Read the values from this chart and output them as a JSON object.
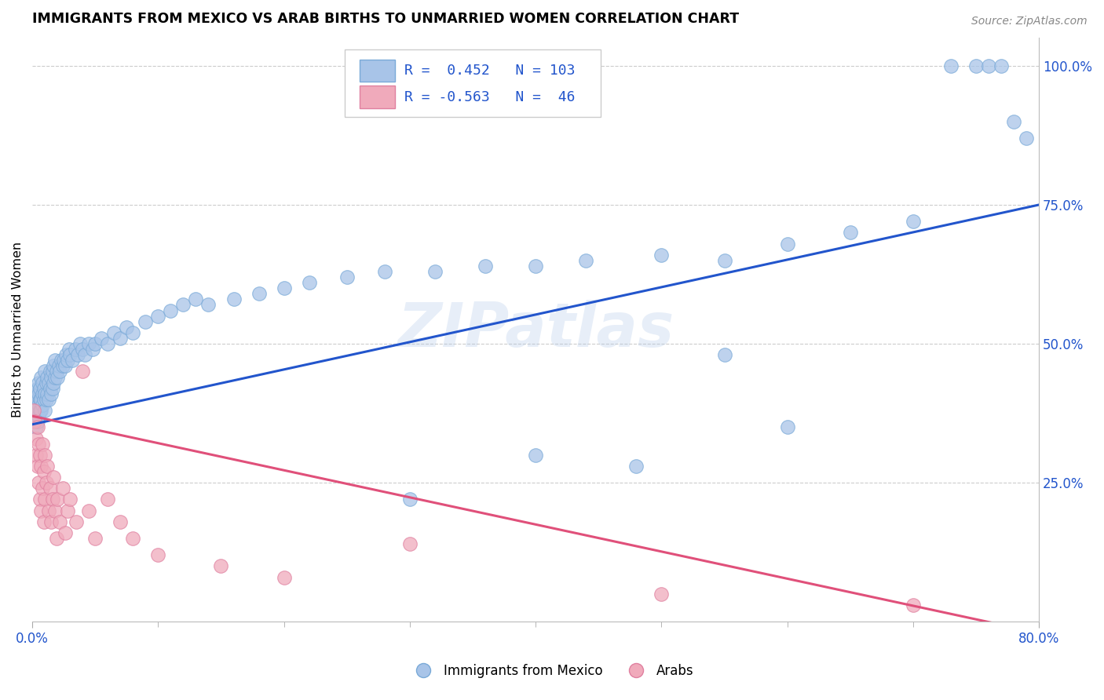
{
  "title": "IMMIGRANTS FROM MEXICO VS ARAB BIRTHS TO UNMARRIED WOMEN CORRELATION CHART",
  "source": "Source: ZipAtlas.com",
  "ylabel": "Births to Unmarried Women",
  "ylabel_right_ticks": [
    "25.0%",
    "50.0%",
    "75.0%",
    "100.0%"
  ],
  "ylabel_right_vals": [
    0.25,
    0.5,
    0.75,
    1.0
  ],
  "blue_R": 0.452,
  "blue_N": 103,
  "pink_R": -0.563,
  "pink_N": 46,
  "blue_color": "#a8c4e8",
  "pink_color": "#f0aabb",
  "blue_edge": "#7aaad8",
  "pink_edge": "#e080a0",
  "blue_line_color": "#2255cc",
  "pink_line_color": "#e0507a",
  "legend_blue_label": "Immigrants from Mexico",
  "legend_pink_label": "Arabs",
  "watermark": "ZIPatlas",
  "xlim": [
    0.0,
    0.8
  ],
  "ylim": [
    0.0,
    1.05
  ],
  "blue_scatter_x": [
    0.001,
    0.002,
    0.002,
    0.003,
    0.003,
    0.003,
    0.004,
    0.004,
    0.004,
    0.004,
    0.005,
    0.005,
    0.005,
    0.005,
    0.006,
    0.006,
    0.006,
    0.007,
    0.007,
    0.007,
    0.008,
    0.008,
    0.008,
    0.009,
    0.009,
    0.01,
    0.01,
    0.01,
    0.011,
    0.011,
    0.012,
    0.012,
    0.013,
    0.013,
    0.014,
    0.014,
    0.015,
    0.015,
    0.016,
    0.016,
    0.017,
    0.017,
    0.018,
    0.018,
    0.019,
    0.02,
    0.021,
    0.022,
    0.023,
    0.024,
    0.025,
    0.026,
    0.027,
    0.028,
    0.029,
    0.03,
    0.032,
    0.034,
    0.036,
    0.038,
    0.04,
    0.042,
    0.045,
    0.048,
    0.05,
    0.055,
    0.06,
    0.065,
    0.07,
    0.075,
    0.08,
    0.09,
    0.1,
    0.11,
    0.12,
    0.13,
    0.14,
    0.16,
    0.18,
    0.2,
    0.22,
    0.25,
    0.28,
    0.32,
    0.36,
    0.4,
    0.44,
    0.5,
    0.55,
    0.6,
    0.65,
    0.7,
    0.73,
    0.75,
    0.76,
    0.77,
    0.78,
    0.79,
    0.55,
    0.4,
    0.3,
    0.48,
    0.6
  ],
  "blue_scatter_y": [
    0.37,
    0.38,
    0.4,
    0.35,
    0.39,
    0.41,
    0.36,
    0.38,
    0.4,
    0.42,
    0.37,
    0.39,
    0.41,
    0.43,
    0.38,
    0.4,
    0.42,
    0.38,
    0.4,
    0.44,
    0.39,
    0.41,
    0.43,
    0.4,
    0.42,
    0.38,
    0.41,
    0.45,
    0.4,
    0.43,
    0.41,
    0.44,
    0.4,
    0.43,
    0.42,
    0.45,
    0.41,
    0.44,
    0.42,
    0.45,
    0.43,
    0.46,
    0.44,
    0.47,
    0.45,
    0.44,
    0.46,
    0.45,
    0.47,
    0.46,
    0.47,
    0.46,
    0.48,
    0.47,
    0.49,
    0.48,
    0.47,
    0.49,
    0.48,
    0.5,
    0.49,
    0.48,
    0.5,
    0.49,
    0.5,
    0.51,
    0.5,
    0.52,
    0.51,
    0.53,
    0.52,
    0.54,
    0.55,
    0.56,
    0.57,
    0.58,
    0.57,
    0.58,
    0.59,
    0.6,
    0.61,
    0.62,
    0.63,
    0.63,
    0.64,
    0.64,
    0.65,
    0.66,
    0.65,
    0.68,
    0.7,
    0.72,
    1.0,
    1.0,
    1.0,
    1.0,
    0.9,
    0.87,
    0.48,
    0.3,
    0.22,
    0.28,
    0.35
  ],
  "pink_scatter_x": [
    0.001,
    0.002,
    0.003,
    0.003,
    0.004,
    0.004,
    0.005,
    0.005,
    0.006,
    0.006,
    0.007,
    0.007,
    0.008,
    0.008,
    0.009,
    0.009,
    0.01,
    0.01,
    0.011,
    0.012,
    0.013,
    0.014,
    0.015,
    0.016,
    0.017,
    0.018,
    0.019,
    0.02,
    0.022,
    0.024,
    0.026,
    0.028,
    0.03,
    0.035,
    0.04,
    0.045,
    0.05,
    0.06,
    0.07,
    0.08,
    0.1,
    0.15,
    0.2,
    0.3,
    0.5,
    0.7
  ],
  "pink_scatter_y": [
    0.38,
    0.36,
    0.33,
    0.3,
    0.35,
    0.28,
    0.32,
    0.25,
    0.3,
    0.22,
    0.28,
    0.2,
    0.32,
    0.24,
    0.27,
    0.18,
    0.3,
    0.22,
    0.25,
    0.28,
    0.2,
    0.24,
    0.18,
    0.22,
    0.26,
    0.2,
    0.15,
    0.22,
    0.18,
    0.24,
    0.16,
    0.2,
    0.22,
    0.18,
    0.45,
    0.2,
    0.15,
    0.22,
    0.18,
    0.15,
    0.12,
    0.1,
    0.08,
    0.14,
    0.05,
    0.03
  ],
  "x_minor_ticks": [
    0.1,
    0.2,
    0.3,
    0.4,
    0.5,
    0.6,
    0.7
  ],
  "blue_line_x": [
    0.0,
    0.8
  ],
  "blue_line_y": [
    0.355,
    0.75
  ],
  "pink_line_x": [
    0.0,
    0.8
  ],
  "pink_line_y": [
    0.37,
    -0.02
  ]
}
